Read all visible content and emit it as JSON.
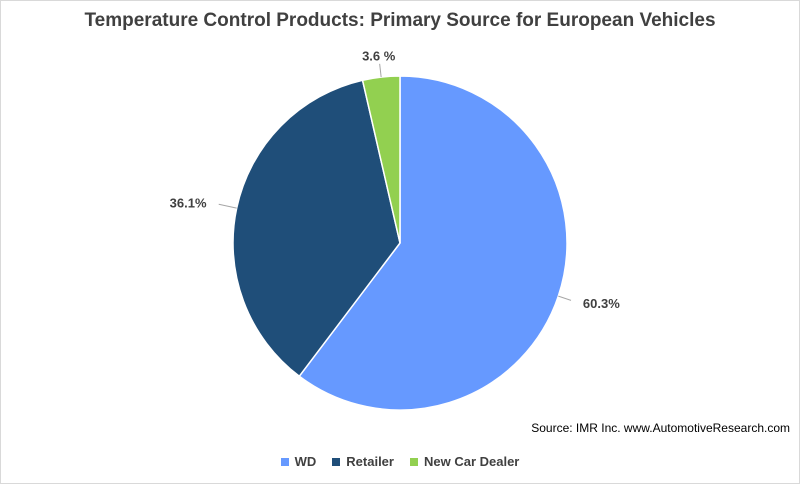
{
  "chart_data": {
    "type": "pie",
    "title": "Temperature Control Products: Primary Source for European Vehicles",
    "categories": [
      "WD",
      "Retailer",
      "New Car Dealer"
    ],
    "values": [
      60.3,
      36.1,
      3.6
    ],
    "data_labels": [
      "60.3%",
      "36.1%",
      "3.6 %"
    ],
    "colors": [
      "#6699ff",
      "#1f4e79",
      "#92d050"
    ],
    "start_angle_deg": 0,
    "direction": "clockwise",
    "legend_position": "bottom",
    "source": "Source: IMR Inc. www.AutomotiveResearch.com"
  }
}
